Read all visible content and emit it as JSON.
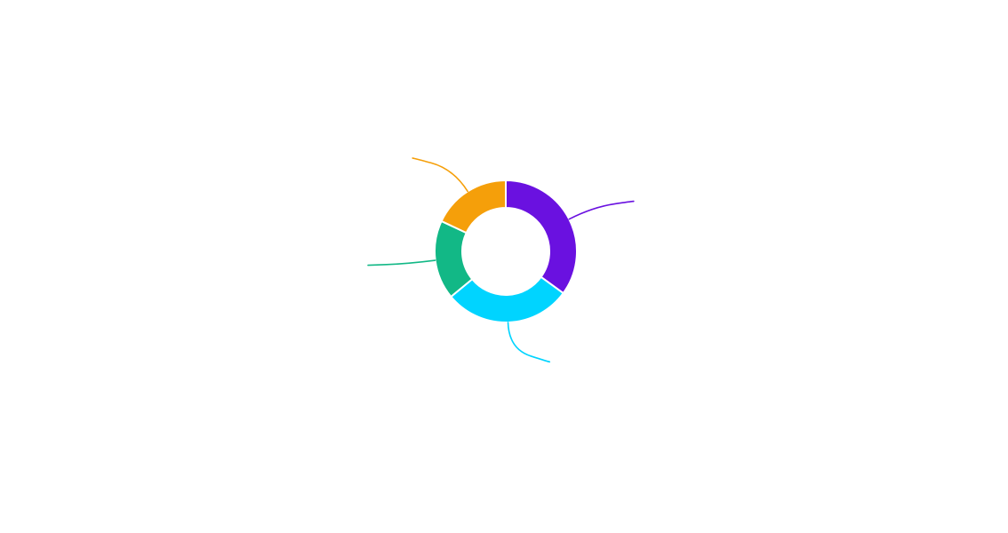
{
  "chart_data": {
    "type": "pie",
    "variant": "donut",
    "title": "",
    "legend": "none",
    "labels": "hidden",
    "slices": [
      {
        "value": 35,
        "color": "#6a11e0"
      },
      {
        "value": 29,
        "color": "#00d4ff"
      },
      {
        "value": 18,
        "color": "#12b886"
      },
      {
        "value": 18,
        "color": "#f59f0a"
      }
    ]
  }
}
